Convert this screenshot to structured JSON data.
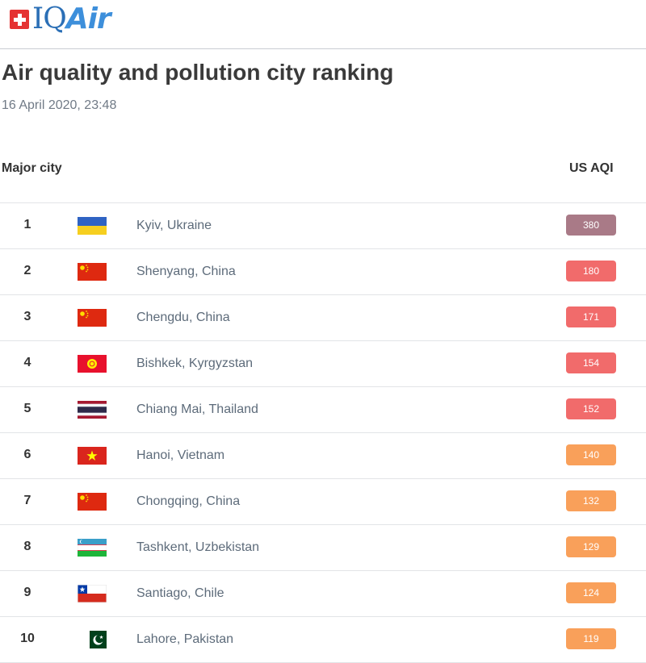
{
  "brand": {
    "logo_prefix": "IQ",
    "logo_suffix": "Air"
  },
  "page": {
    "title": "Air quality and pollution city ranking",
    "timestamp": "16 April 2020, 23:48"
  },
  "table": {
    "headers": {
      "city": "Major city",
      "aqi": "US AQI"
    },
    "rows": [
      {
        "rank": "1",
        "city": "Kyiv, Ukraine",
        "flag": "ukraine-flag-icon",
        "aqi": "380",
        "color": "#a97a87"
      },
      {
        "rank": "2",
        "city": "Shenyang, China",
        "flag": "china-flag-icon",
        "aqi": "180",
        "color": "#f16b6b"
      },
      {
        "rank": "3",
        "city": "Chengdu, China",
        "flag": "china-flag-icon",
        "aqi": "171",
        "color": "#f16b6b"
      },
      {
        "rank": "4",
        "city": "Bishkek, Kyrgyzstan",
        "flag": "kyrgyzstan-flag-icon",
        "aqi": "154",
        "color": "#f16b6b"
      },
      {
        "rank": "5",
        "city": "Chiang Mai, Thailand",
        "flag": "thailand-flag-icon",
        "aqi": "152",
        "color": "#f16b6b"
      },
      {
        "rank": "6",
        "city": "Hanoi, Vietnam",
        "flag": "vietnam-flag-icon",
        "aqi": "140",
        "color": "#f9a05a"
      },
      {
        "rank": "7",
        "city": "Chongqing, China",
        "flag": "china-flag-icon",
        "aqi": "132",
        "color": "#f9a05a"
      },
      {
        "rank": "8",
        "city": "Tashkent, Uzbekistan",
        "flag": "uzbekistan-flag-icon",
        "aqi": "129",
        "color": "#f9a05a"
      },
      {
        "rank": "9",
        "city": "Santiago, Chile",
        "flag": "chile-flag-icon",
        "aqi": "124",
        "color": "#f9a05a"
      },
      {
        "rank": "10",
        "city": "Lahore, Pakistan",
        "flag": "pakistan-flag-icon",
        "aqi": "119",
        "color": "#f9a05a"
      }
    ]
  }
}
